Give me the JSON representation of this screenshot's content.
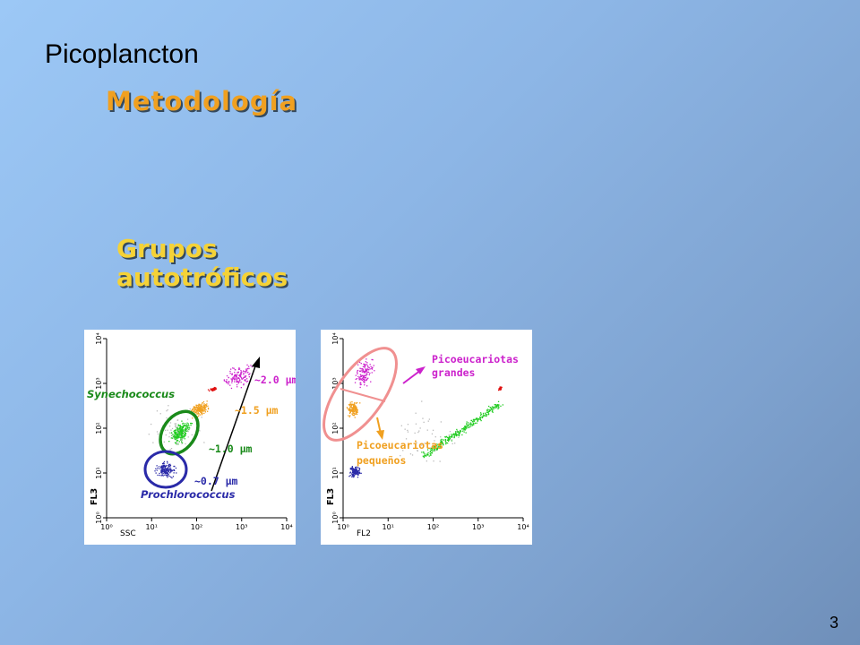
{
  "title": "Picoplancton",
  "subtitle": "Metodología",
  "heading": "Grupos autotróficos",
  "page_number": "3",
  "colors": {
    "title": "#000000",
    "subtitle": "#f0a020",
    "heading": "#f5d236",
    "prochlorococcus": "#2a2aa8",
    "synechococcus": "#1a8a1a",
    "orange_group": "#f0a020",
    "red_group": "#e01010",
    "magenta_group": "#cc22cc"
  },
  "plot_left": {
    "x_label": "SSC",
    "y_label": "FL3",
    "x_ticks": [
      "10⁰",
      "10¹",
      "10²",
      "10³",
      "10⁴"
    ],
    "y_ticks": [
      "10⁰",
      "10¹",
      "10²",
      "10³",
      "10⁴"
    ],
    "labels": {
      "synechococcus": "Synechococcus",
      "prochlorococcus": "Prochlorococcus",
      "size_07": "~0.7 µm",
      "size_10": "~1.0 µm",
      "size_15": "~1.5 µm",
      "size_20": "~2.0 µm"
    }
  },
  "plot_right": {
    "x_label": "FL2",
    "y_label": "FL3",
    "x_ticks": [
      "10⁰",
      "10¹",
      "10²",
      "10³",
      "10⁴"
    ],
    "y_ticks": [
      "10⁰",
      "10¹",
      "10²",
      "10³",
      "10⁴"
    ],
    "labels": {
      "large_line1": "Picoeucariotas",
      "large_line2": "grandes",
      "small_line1": "Picoeucariotas",
      "small_line2": "pequeños"
    }
  }
}
